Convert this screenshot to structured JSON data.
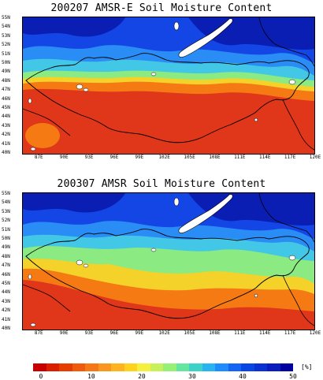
{
  "panels": [
    {
      "title": "200207 AMSR-E Soil Moisture Content"
    },
    {
      "title": "200307 AMSR Soil Moisture Content"
    }
  ],
  "axes": {
    "latitude_labels": [
      "55N",
      "54N",
      "53N",
      "52N",
      "51N",
      "50N",
      "49N",
      "48N",
      "47N",
      "46N",
      "45N",
      "44N",
      "43N",
      "42N",
      "41N",
      "40N"
    ],
    "longitude_labels": [
      "87E",
      "90E",
      "93E",
      "96E",
      "99E",
      "102E",
      "105E",
      "108E",
      "111E",
      "114E",
      "117E",
      "120E"
    ],
    "lat_range": [
      40,
      55
    ],
    "lon_range": [
      85,
      120
    ]
  },
  "colorbar": {
    "unit": "[%]",
    "tick_labels": [
      "0",
      "10",
      "20",
      "30",
      "40",
      "50"
    ],
    "colors": [
      "#c80000",
      "#dc1e00",
      "#e63c00",
      "#f05a0a",
      "#f57814",
      "#fa961e",
      "#ffb41e",
      "#ffd21e",
      "#f5f03c",
      "#c8f05a",
      "#96f078",
      "#64e6a0",
      "#3cd2c8",
      "#28b4f0",
      "#1e8cff",
      "#1464f5",
      "#0a46e6",
      "#0a32d2",
      "#0a1ebe",
      "#0000a0"
    ]
  },
  "map_colors": {
    "dry": "#e0361a",
    "orange": "#f57a14",
    "yellow": "#f5d22a",
    "green": "#8cea82",
    "cyan": "#42c8e6",
    "blue_light": "#2a8cf5",
    "blue": "#1446e6",
    "blue_dark": "#0a1eb4",
    "land_ice": "#ffffff",
    "border": "#000000"
  }
}
